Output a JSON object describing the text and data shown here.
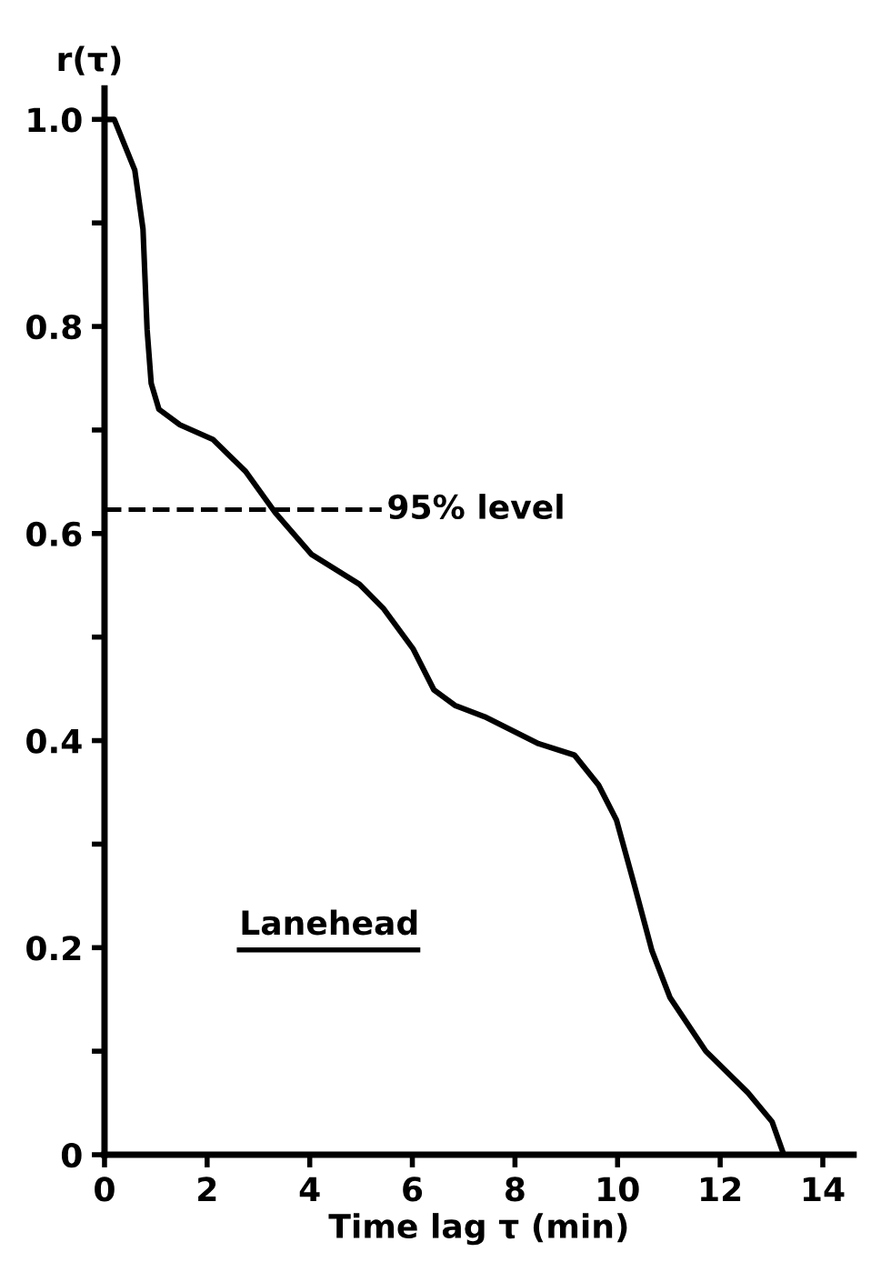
{
  "chart_data": {
    "type": "line",
    "xlabel": "Time lag τ (min)",
    "ylabel": "r(τ)",
    "series": [
      {
        "color": "#000000",
        "x": [
          0.0,
          0.19,
          0.59,
          0.75,
          0.83,
          0.91,
          1.06,
          1.47,
          2.11,
          2.75,
          3.33,
          4.03,
          4.97,
          5.43,
          6.01,
          6.42,
          6.83,
          7.41,
          8.46,
          9.16,
          9.63,
          9.98,
          10.33,
          10.67,
          11.02,
          11.72,
          12.54,
          13.01,
          13.24
        ],
        "values": [
          1.0,
          1.0,
          0.951,
          0.894,
          0.797,
          0.745,
          0.72,
          0.705,
          0.691,
          0.66,
          0.62,
          0.58,
          0.551,
          0.528,
          0.489,
          0.449,
          0.434,
          0.423,
          0.397,
          0.386,
          0.357,
          0.323,
          0.26,
          0.197,
          0.152,
          0.1,
          0.06,
          0.032,
          0.0
        ]
      }
    ],
    "xlim": [
      0,
      14.6
    ],
    "ylim": [
      0,
      1.03
    ],
    "xticks": [
      0,
      2,
      4,
      6,
      8,
      10,
      12,
      14
    ],
    "yticks": [
      0,
      {
        "value": 0.1,
        "label": null
      },
      0.2,
      {
        "value": 0.3,
        "label": null
      },
      0.4,
      {
        "value": 0.5,
        "label": null
      },
      0.6,
      {
        "value": 0.7,
        "label": null
      },
      0.8,
      {
        "value": 0.9,
        "label": null
      },
      {
        "value": 1,
        "label": "1.0"
      }
    ],
    "ref_lines": [
      {
        "axis": "y",
        "value": 0.623,
        "label": "95% level",
        "line_style": "dashed",
        "color": "#000000"
      }
    ],
    "annotations": [
      "Lanehead"
    ],
    "grid": false,
    "legend": false,
    "marker": "none",
    "line_style": "solid"
  }
}
